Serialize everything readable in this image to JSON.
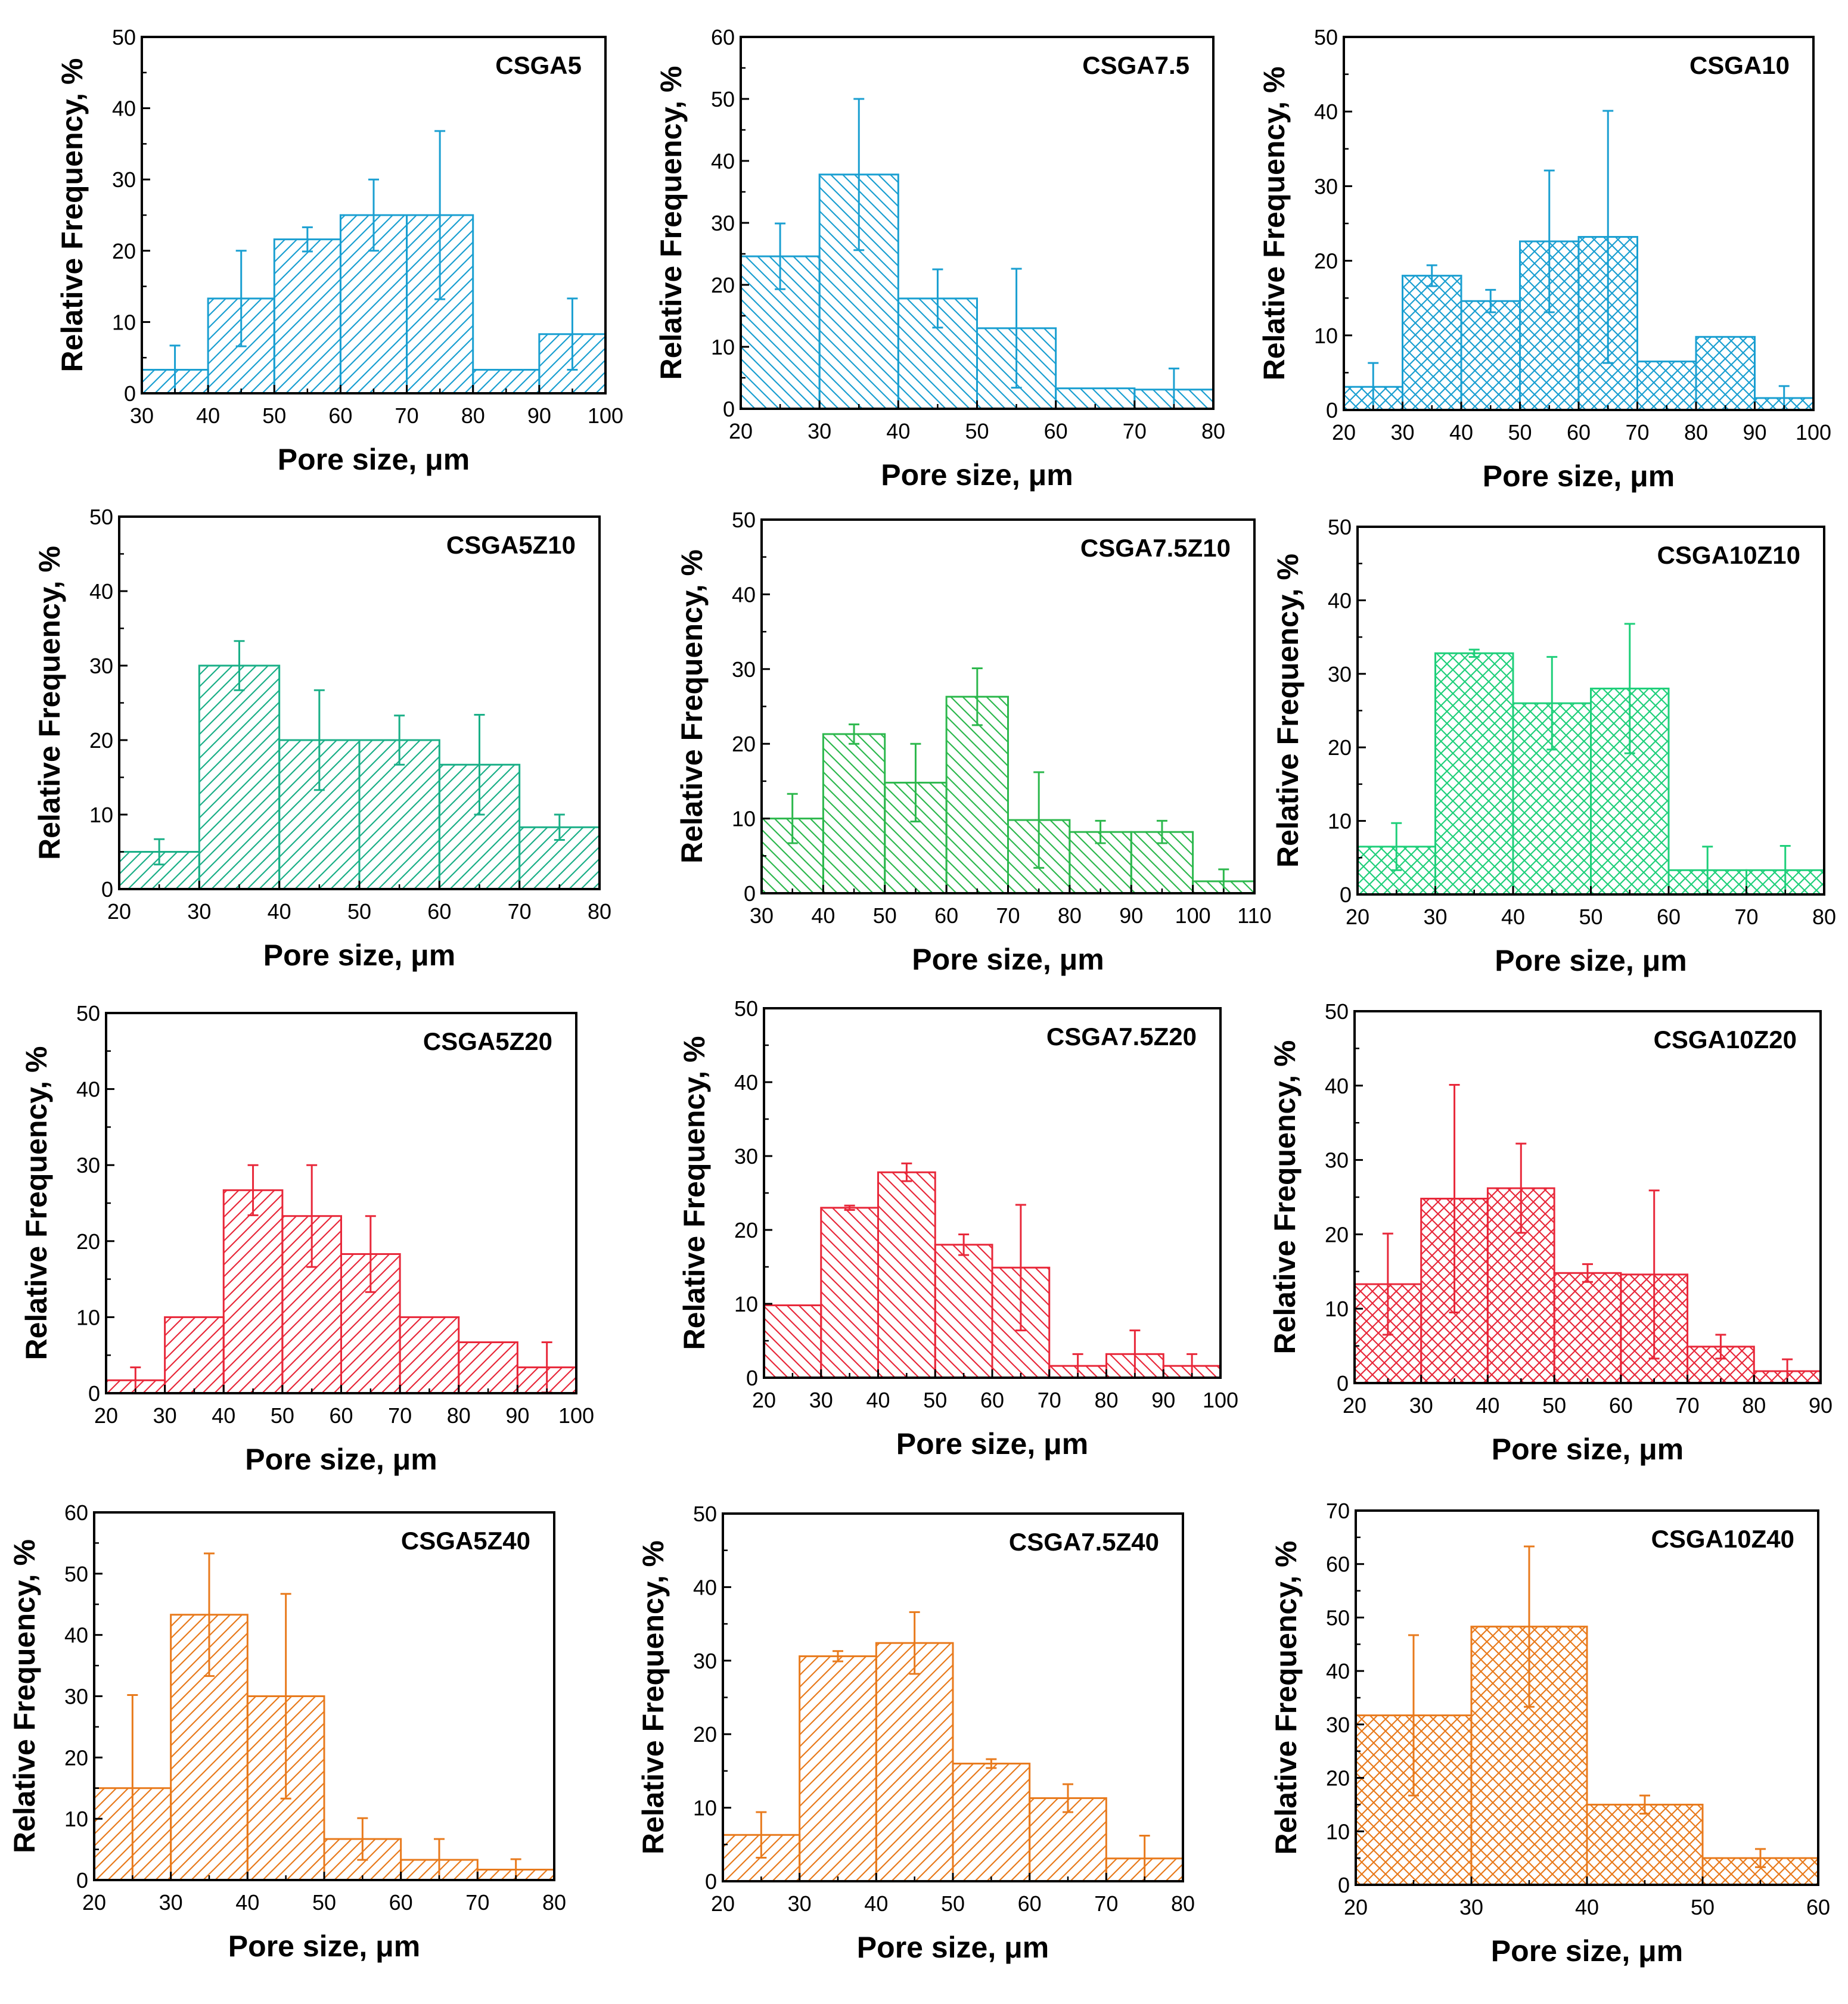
{
  "figure": {
    "ylabel": "Relative Frequency, %",
    "xlabel": "Pore size, μm"
  },
  "chart_data": [
    {
      "type": "bar",
      "title": "CSGA5",
      "color": "#1a9fd1",
      "hatch": "diag",
      "xlim": [
        30,
        100
      ],
      "xticks": [
        30,
        40,
        50,
        60,
        70,
        80,
        90,
        100
      ],
      "ylim": [
        0,
        50
      ],
      "yticks": [
        0,
        10,
        20,
        30,
        40,
        50
      ],
      "bins": [
        [
          30,
          40
        ],
        [
          40,
          50
        ],
        [
          50,
          60
        ],
        [
          60,
          70
        ],
        [
          70,
          80
        ],
        [
          80,
          90
        ],
        [
          90,
          100
        ]
      ],
      "values": [
        3.3,
        13.3,
        21.6,
        25,
        25,
        3.3,
        8.3
      ],
      "errors": [
        3.4,
        6.7,
        1.7,
        5,
        11.8,
        0,
        5
      ]
    },
    {
      "type": "bar",
      "title": "CSGA7.5",
      "color": "#1a9fd1",
      "hatch": "anti",
      "xlim": [
        20,
        80
      ],
      "xticks": [
        20,
        30,
        40,
        50,
        60,
        70,
        80
      ],
      "ylim": [
        0,
        60
      ],
      "yticks": [
        0,
        10,
        20,
        30,
        40,
        50,
        60
      ],
      "bins": [
        [
          20,
          30
        ],
        [
          30,
          40
        ],
        [
          40,
          50
        ],
        [
          50,
          60
        ],
        [
          60,
          70
        ],
        [
          70,
          80
        ]
      ],
      "values": [
        24.6,
        37.8,
        17.8,
        13,
        3.3,
        3.1
      ],
      "errors": [
        5.3,
        12.2,
        4.7,
        9.6,
        0,
        3.4
      ]
    },
    {
      "type": "bar",
      "title": "CSGA10",
      "color": "#1a9fd1",
      "hatch": "cross",
      "xlim": [
        20,
        100
      ],
      "xticks": [
        20,
        30,
        40,
        50,
        60,
        70,
        80,
        90,
        100
      ],
      "ylim": [
        0,
        50
      ],
      "yticks": [
        0,
        10,
        20,
        30,
        40,
        50
      ],
      "bins": [
        [
          20,
          30
        ],
        [
          30,
          40
        ],
        [
          40,
          50
        ],
        [
          50,
          60
        ],
        [
          60,
          70
        ],
        [
          70,
          80
        ],
        [
          80,
          90
        ],
        [
          90,
          100
        ]
      ],
      "values": [
        3.1,
        18,
        14.6,
        22.6,
        23.2,
        6.5,
        9.8,
        1.6
      ],
      "errors": [
        3.2,
        1.4,
        1.5,
        9.5,
        16.9,
        0,
        0,
        1.6
      ]
    },
    {
      "type": "bar",
      "title": "CSGA5Z10",
      "color": "#1aaf87",
      "hatch": "diag",
      "xlim": [
        20,
        80
      ],
      "xticks": [
        20,
        30,
        40,
        50,
        60,
        70,
        80
      ],
      "ylim": [
        0,
        50
      ],
      "yticks": [
        0,
        10,
        20,
        30,
        40,
        50
      ],
      "bins": [
        [
          20,
          30
        ],
        [
          30,
          40
        ],
        [
          40,
          50
        ],
        [
          50,
          60
        ],
        [
          60,
          70
        ],
        [
          70,
          80
        ]
      ],
      "values": [
        5,
        30,
        20,
        20,
        16.7,
        8.3
      ],
      "errors": [
        1.7,
        3.3,
        6.7,
        3.3,
        6.7,
        1.7
      ]
    },
    {
      "type": "bar",
      "title": "CSGA7.5Z10",
      "color": "#2db84d",
      "hatch": "anti",
      "xlim": [
        30,
        110
      ],
      "xticks": [
        30,
        40,
        50,
        60,
        70,
        80,
        90,
        100,
        110
      ],
      "ylim": [
        0,
        50
      ],
      "yticks": [
        0,
        10,
        20,
        30,
        40,
        50
      ],
      "bins": [
        [
          30,
          40
        ],
        [
          40,
          50
        ],
        [
          50,
          60
        ],
        [
          60,
          70
        ],
        [
          70,
          80
        ],
        [
          80,
          90
        ],
        [
          90,
          100
        ],
        [
          100,
          110
        ]
      ],
      "values": [
        10,
        21.3,
        14.8,
        26.3,
        9.8,
        8.2,
        8.2,
        1.6
      ],
      "errors": [
        3.3,
        1.3,
        5.2,
        3.8,
        6.4,
        1.5,
        1.5,
        1.6
      ]
    },
    {
      "type": "bar",
      "title": "CSGA10Z10",
      "color": "#1fcf7a",
      "hatch": "cross",
      "xlim": [
        20,
        80
      ],
      "xticks": [
        20,
        30,
        40,
        50,
        60,
        70,
        80
      ],
      "ylim": [
        0,
        50
      ],
      "yticks": [
        0,
        10,
        20,
        30,
        40,
        50
      ],
      "bins": [
        [
          20,
          30
        ],
        [
          30,
          40
        ],
        [
          40,
          50
        ],
        [
          50,
          60
        ],
        [
          60,
          70
        ],
        [
          70,
          80
        ]
      ],
      "values": [
        6.5,
        32.8,
        26,
        28,
        3.3,
        3.3
      ],
      "errors": [
        3.2,
        0.5,
        6.3,
        8.8,
        3.2,
        3.3
      ]
    },
    {
      "type": "bar",
      "title": "CSGA5Z20",
      "color": "#e8283a",
      "hatch": "diag",
      "xlim": [
        20,
        100
      ],
      "xticks": [
        20,
        30,
        40,
        50,
        60,
        70,
        80,
        90,
        100
      ],
      "ylim": [
        0,
        50
      ],
      "yticks": [
        0,
        10,
        20,
        30,
        40,
        50
      ],
      "bins": [
        [
          20,
          30
        ],
        [
          30,
          40
        ],
        [
          40,
          50
        ],
        [
          50,
          60
        ],
        [
          60,
          70
        ],
        [
          70,
          80
        ],
        [
          80,
          90
        ],
        [
          90,
          100
        ]
      ],
      "values": [
        1.7,
        10,
        26.7,
        23.3,
        18.3,
        10,
        6.7,
        3.4
      ],
      "errors": [
        1.7,
        0,
        3.3,
        6.7,
        5,
        0,
        0,
        3.3
      ]
    },
    {
      "type": "bar",
      "title": "CSGA7.5Z20",
      "color": "#e8283a",
      "hatch": "anti",
      "xlim": [
        20,
        100
      ],
      "xticks": [
        20,
        30,
        40,
        50,
        60,
        70,
        80,
        90,
        100
      ],
      "ylim": [
        0,
        50
      ],
      "yticks": [
        0,
        10,
        20,
        30,
        40,
        50
      ],
      "bins": [
        [
          20,
          30
        ],
        [
          30,
          40
        ],
        [
          40,
          50
        ],
        [
          50,
          60
        ],
        [
          60,
          70
        ],
        [
          70,
          80
        ],
        [
          80,
          90
        ],
        [
          90,
          100
        ]
      ],
      "values": [
        9.8,
        23,
        27.8,
        18,
        14.9,
        1.6,
        3.2,
        1.6
      ],
      "errors": [
        0,
        0.3,
        1.2,
        1.4,
        8.5,
        1.6,
        3.2,
        1.6
      ]
    },
    {
      "type": "bar",
      "title": "CSGA10Z20",
      "color": "#e8283a",
      "hatch": "cross",
      "xlim": [
        20,
        90
      ],
      "xticks": [
        20,
        30,
        40,
        50,
        60,
        70,
        80,
        90
      ],
      "ylim": [
        0,
        50
      ],
      "yticks": [
        0,
        10,
        20,
        30,
        40,
        50
      ],
      "bins": [
        [
          20,
          30
        ],
        [
          30,
          40
        ],
        [
          40,
          50
        ],
        [
          50,
          60
        ],
        [
          60,
          70
        ],
        [
          70,
          80
        ],
        [
          80,
          90
        ]
      ],
      "values": [
        13.3,
        24.8,
        26.2,
        14.8,
        14.6,
        4.9,
        1.6
      ],
      "errors": [
        6.8,
        15.3,
        6,
        1.2,
        11.3,
        1.6,
        1.6
      ]
    },
    {
      "type": "bar",
      "title": "CSGA5Z40",
      "color": "#e87a1c",
      "hatch": "diag",
      "xlim": [
        20,
        80
      ],
      "xticks": [
        20,
        30,
        40,
        50,
        60,
        70,
        80
      ],
      "ylim": [
        0,
        60
      ],
      "yticks": [
        0,
        10,
        20,
        30,
        40,
        50,
        60
      ],
      "bins": [
        [
          20,
          30
        ],
        [
          30,
          40
        ],
        [
          40,
          50
        ],
        [
          50,
          60
        ],
        [
          60,
          70
        ],
        [
          70,
          80
        ]
      ],
      "values": [
        15,
        43.3,
        30,
        6.7,
        3.3,
        1.7
      ],
      "errors": [
        15.2,
        10,
        16.7,
        3.4,
        3.4,
        1.7
      ]
    },
    {
      "type": "bar",
      "title": "CSGA7.5Z40",
      "color": "#e87a1c",
      "hatch": "diag",
      "xlim": [
        20,
        80
      ],
      "xticks": [
        20,
        30,
        40,
        50,
        60,
        70,
        80
      ],
      "ylim": [
        0,
        50
      ],
      "yticks": [
        0,
        10,
        20,
        30,
        40,
        50
      ],
      "bins": [
        [
          20,
          30
        ],
        [
          30,
          40
        ],
        [
          40,
          50
        ],
        [
          50,
          60
        ],
        [
          60,
          70
        ],
        [
          70,
          80
        ]
      ],
      "values": [
        6.3,
        30.6,
        32.4,
        16,
        11.3,
        3.1
      ],
      "errors": [
        3.1,
        0.7,
        4.2,
        0.6,
        1.9,
        3.1
      ]
    },
    {
      "type": "bar",
      "title": "CSGA10Z40",
      "color": "#e87a1c",
      "hatch": "cross",
      "xlim": [
        20,
        60
      ],
      "xticks": [
        20,
        30,
        40,
        50,
        60
      ],
      "ylim": [
        0,
        70
      ],
      "yticks": [
        0,
        10,
        20,
        30,
        40,
        50,
        60,
        70
      ],
      "bins": [
        [
          20,
          30
        ],
        [
          30,
          40
        ],
        [
          40,
          50
        ],
        [
          50,
          60
        ]
      ],
      "values": [
        31.7,
        48.3,
        15,
        5
      ],
      "errors": [
        15,
        15,
        1.7,
        1.7
      ]
    }
  ]
}
